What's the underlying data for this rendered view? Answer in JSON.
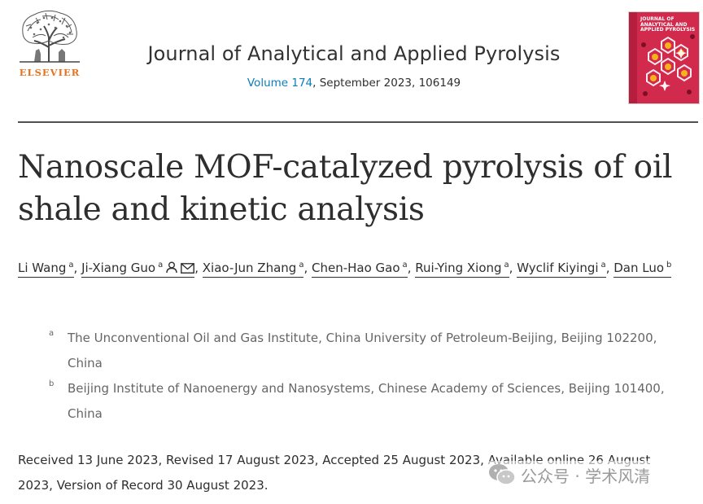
{
  "header": {
    "publisher": "ELSEVIER",
    "journal_title": "Journal of Analytical and Applied Pyrolysis",
    "volume_link": "Volume 174",
    "issue_info": ", September 2023, 106149",
    "cover_title": "JOURNAL of ANALYTICAL and APPLIED PYROLYSIS"
  },
  "article": {
    "title": "Nanoscale MOF-catalyzed pyrolysis of oil shale and kinetic analysis"
  },
  "authors": [
    {
      "name": "Li Wang",
      "affil": "a",
      "sep": ", "
    },
    {
      "name": "Ji-Xiang Guo",
      "affil": "a",
      "icons": [
        "person-icon",
        "envelope-icon"
      ],
      "sep": ", "
    },
    {
      "name": "Xiao-Jun Zhang",
      "affil": "a",
      "sep": ", "
    },
    {
      "name": "Chen-Hao Gao",
      "affil": "a",
      "sep": ", "
    },
    {
      "name": "Rui-Ying Xiong",
      "affil": "a",
      "sep": ", "
    },
    {
      "name": "Wyclif Kiyingi",
      "affil": "a",
      "sep": ", "
    },
    {
      "name": "Dan Luo",
      "affil": "b",
      "sep": ""
    }
  ],
  "affiliations": [
    {
      "label": "a",
      "text": "The Unconventional Oil and Gas Institute, China University of Petroleum-Beijing, Beijing 102200, China"
    },
    {
      "label": "b",
      "text": "Beijing Institute of Nanoenergy and Nanosystems, Chinese Academy of Sciences, Beijing 101400, China"
    }
  ],
  "history": "Received 13 June 2023, Revised 17 August 2023, Accepted 25 August 2023, Available online 26 August 2023, Version of Record 30 August 2023.",
  "watermark": {
    "text": "公众号 · 学术风清",
    "icon": "wechat-icon"
  },
  "colors": {
    "elsevier_orange": "#e9711c",
    "link_blue": "#0c7dbb",
    "cover_red": "#d22a4c"
  }
}
